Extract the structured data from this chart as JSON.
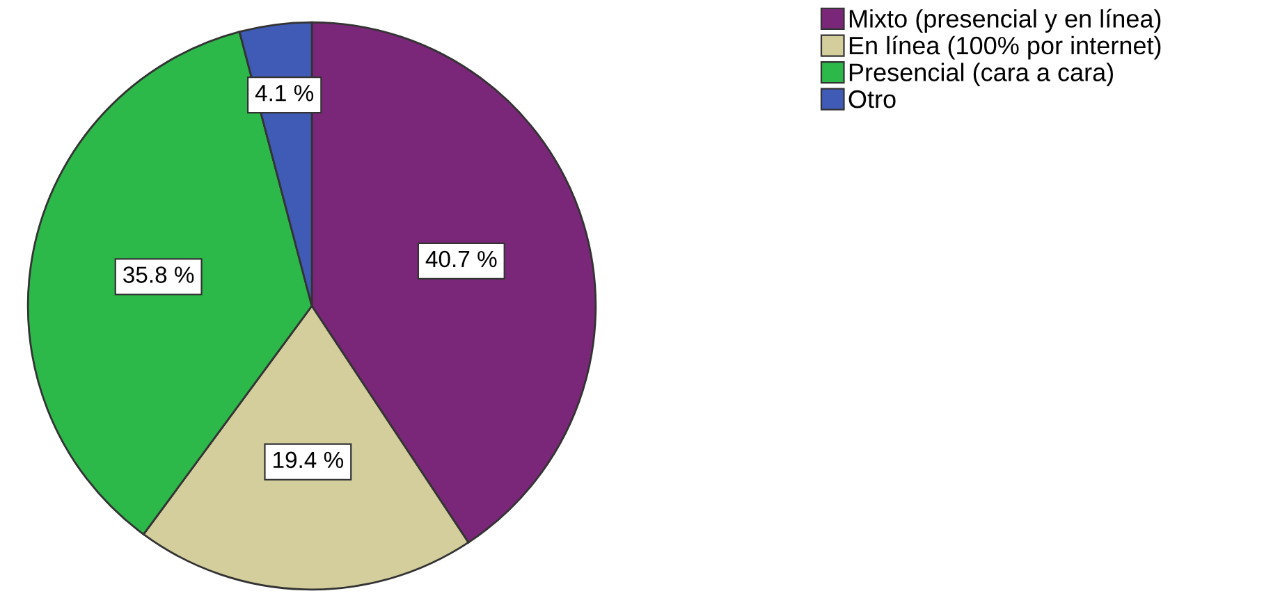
{
  "chart_data": {
    "type": "pie",
    "categories": [
      "Mixto (presencial y en línea)",
      "En línea (100% por internet)",
      "Presencial (cara a cara)",
      "Otro"
    ],
    "values": [
      40.7,
      19.4,
      35.8,
      4.1
    ],
    "colors": [
      "#7b2779",
      "#d3ce9c",
      "#2db84a",
      "#3f5bb5"
    ],
    "value_labels": [
      "40.7 %",
      "19.4 %",
      "35.8 %",
      "4.1 %"
    ],
    "legend": "top right"
  }
}
